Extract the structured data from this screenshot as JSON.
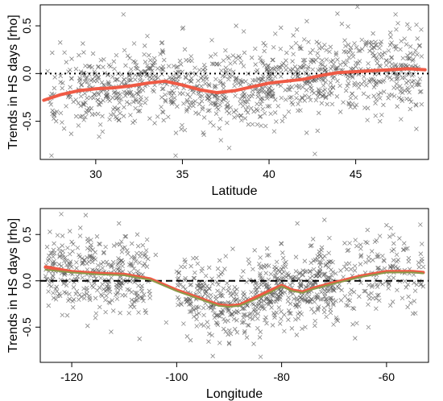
{
  "chart_data": [
    {
      "type": "scatter",
      "title": "",
      "xlabel": "Latitude",
      "ylabel": "Trends in HS days [rho]",
      "xlim": [
        26.8,
        49.2
      ],
      "ylim": [
        -0.9,
        0.72
      ],
      "xticks": [
        30,
        35,
        40,
        45
      ],
      "yticks": [
        -0.5,
        0.0,
        0.5
      ],
      "reference_line": {
        "y": 0,
        "style": "dotted",
        "color": "#000000"
      },
      "points": {
        "marker": "x",
        "color": "#555555",
        "samples": [
          [
            27.6,
            -0.22
          ],
          [
            28.2,
            0.22
          ],
          [
            28.6,
            -0.05
          ],
          [
            29.0,
            -0.31
          ],
          [
            29.4,
            0.08
          ],
          [
            29.8,
            -0.43
          ],
          [
            30.3,
            0.14
          ],
          [
            30.8,
            -0.48
          ],
          [
            31.3,
            0.0
          ],
          [
            31.6,
            0.62
          ],
          [
            32.3,
            -0.27
          ],
          [
            32.8,
            0.2
          ],
          [
            33.4,
            -0.52
          ],
          [
            33.8,
            0.32
          ],
          [
            34.5,
            -0.3
          ],
          [
            35.0,
            0.47
          ],
          [
            35.5,
            0.18
          ],
          [
            36.2,
            -0.62
          ],
          [
            36.7,
            0.35
          ],
          [
            37.2,
            -0.1
          ],
          [
            37.7,
            -0.78
          ],
          [
            38.1,
            0.5
          ],
          [
            38.5,
            -0.34
          ],
          [
            39.2,
            0.26
          ],
          [
            39.8,
            -0.55
          ],
          [
            40.3,
            0.05
          ],
          [
            40.9,
            -0.45
          ],
          [
            41.4,
            0.4
          ],
          [
            41.9,
            -0.25
          ],
          [
            42.4,
            0.12
          ],
          [
            42.8,
            -0.6
          ],
          [
            43.2,
            0.3
          ],
          [
            43.7,
            -0.15
          ],
          [
            44.2,
            0.52
          ],
          [
            44.7,
            -0.35
          ],
          [
            45.1,
            0.7
          ],
          [
            45.5,
            -0.08
          ],
          [
            46.0,
            0.42
          ],
          [
            46.4,
            -0.5
          ],
          [
            46.9,
            0.24
          ],
          [
            47.3,
            0.62
          ],
          [
            47.7,
            -0.2
          ],
          [
            48.1,
            0.47
          ],
          [
            48.5,
            -0.58
          ],
          [
            48.8,
            0.18
          ]
        ]
      },
      "series": [
        {
          "type": "line",
          "color": "#ef5a45",
          "x": [
            27.0,
            28.0,
            29.0,
            30.0,
            31.0,
            32.0,
            33.0,
            34.0,
            35.0,
            36.0,
            37.0,
            38.0,
            39.0,
            40.0,
            41.0,
            42.0,
            43.0,
            44.0,
            45.0,
            46.0,
            47.0,
            48.0,
            49.0
          ],
          "values": [
            -0.28,
            -0.22,
            -0.18,
            -0.16,
            -0.15,
            -0.13,
            -0.1,
            -0.08,
            -0.12,
            -0.17,
            -0.2,
            -0.18,
            -0.14,
            -0.1,
            -0.08,
            -0.06,
            -0.02,
            0.01,
            0.02,
            0.03,
            0.04,
            0.05,
            0.04
          ]
        }
      ],
      "grid": false
    },
    {
      "type": "scatter",
      "title": "",
      "xlabel": "Longitude",
      "ylabel": "Trends in HS days [rho]",
      "xlim": [
        -126,
        -52
      ],
      "ylim": [
        -0.88,
        0.78
      ],
      "xticks": [
        -120,
        -100,
        -80,
        -60
      ],
      "yticks": [
        -0.5,
        0.0,
        0.5
      ],
      "reference_line": {
        "y": 0,
        "style": "dashed",
        "color": "#000000"
      },
      "points": {
        "marker": "x",
        "color": "#555555",
        "samples": [
          [
            -125.0,
            0.05
          ],
          [
            -124.0,
            0.3
          ],
          [
            -123.0,
            -0.2
          ],
          [
            -122.0,
            0.72
          ],
          [
            -121.0,
            -0.05
          ],
          [
            -120.0,
            0.42
          ],
          [
            -118.5,
            -0.15
          ],
          [
            -117.0,
            0.35
          ],
          [
            -115.5,
            -0.4
          ],
          [
            -114.0,
            0.2
          ],
          [
            -112.5,
            -0.55
          ],
          [
            -111.0,
            0.62
          ],
          [
            -109.0,
            -0.1
          ],
          [
            -107.5,
            0.5
          ],
          [
            -106.0,
            -0.32
          ],
          [
            -104.0,
            0.28
          ],
          [
            -102.0,
            -0.45
          ],
          [
            -100.0,
            0.1
          ],
          [
            -98.0,
            -0.6
          ],
          [
            -96.0,
            -0.18
          ],
          [
            -94.0,
            -0.5
          ],
          [
            -92.0,
            0.05
          ],
          [
            -90.0,
            -0.68
          ],
          [
            -88.0,
            -0.25
          ],
          [
            -86.0,
            -0.4
          ],
          [
            -84.0,
            -0.82
          ],
          [
            -82.0,
            -0.15
          ],
          [
            -80.0,
            0.4
          ],
          [
            -78.5,
            -0.35
          ],
          [
            -77.0,
            0.62
          ],
          [
            -75.5,
            -0.5
          ],
          [
            -74.0,
            0.45
          ],
          [
            -72.5,
            -0.2
          ],
          [
            -71.0,
            0.3
          ],
          [
            -69.5,
            -0.42
          ],
          [
            -68.0,
            0.15
          ],
          [
            -66.0,
            -0.62
          ],
          [
            -64.0,
            0.2
          ],
          [
            -62.0,
            -0.3
          ],
          [
            -60.0,
            0.6
          ],
          [
            -58.0,
            -0.1
          ],
          [
            -56.0,
            0.35
          ],
          [
            -54.5,
            -0.35
          ],
          [
            -53.0,
            0.15
          ]
        ]
      },
      "series": [
        {
          "type": "line",
          "color": "#ef5a45",
          "x": [
            -125,
            -120,
            -115,
            -110,
            -105,
            -100,
            -95,
            -92,
            -90,
            -88,
            -85,
            -82,
            -80,
            -78,
            -76,
            -74,
            -70,
            -65,
            -60,
            -55,
            -53
          ],
          "values": [
            0.15,
            0.1,
            0.08,
            0.07,
            0.02,
            -0.1,
            -0.2,
            -0.26,
            -0.27,
            -0.26,
            -0.18,
            -0.1,
            -0.05,
            -0.1,
            -0.12,
            -0.08,
            -0.02,
            0.05,
            0.1,
            0.1,
            0.09
          ]
        },
        {
          "type": "line",
          "color": "#8a9a4a",
          "x": [
            -125,
            -120,
            -115,
            -110,
            -105,
            -100,
            -95,
            -92,
            -90,
            -88,
            -85,
            -82,
            -80,
            -78,
            -76,
            -74,
            -70,
            -65,
            -60,
            -55,
            -53
          ],
          "values": [
            0.12,
            0.09,
            0.07,
            0.06,
            0.01,
            -0.11,
            -0.21,
            -0.27,
            -0.28,
            -0.27,
            -0.2,
            -0.12,
            -0.06,
            -0.11,
            -0.13,
            -0.09,
            -0.03,
            0.04,
            0.09,
            0.09,
            0.08
          ]
        }
      ],
      "grid": false
    }
  ]
}
